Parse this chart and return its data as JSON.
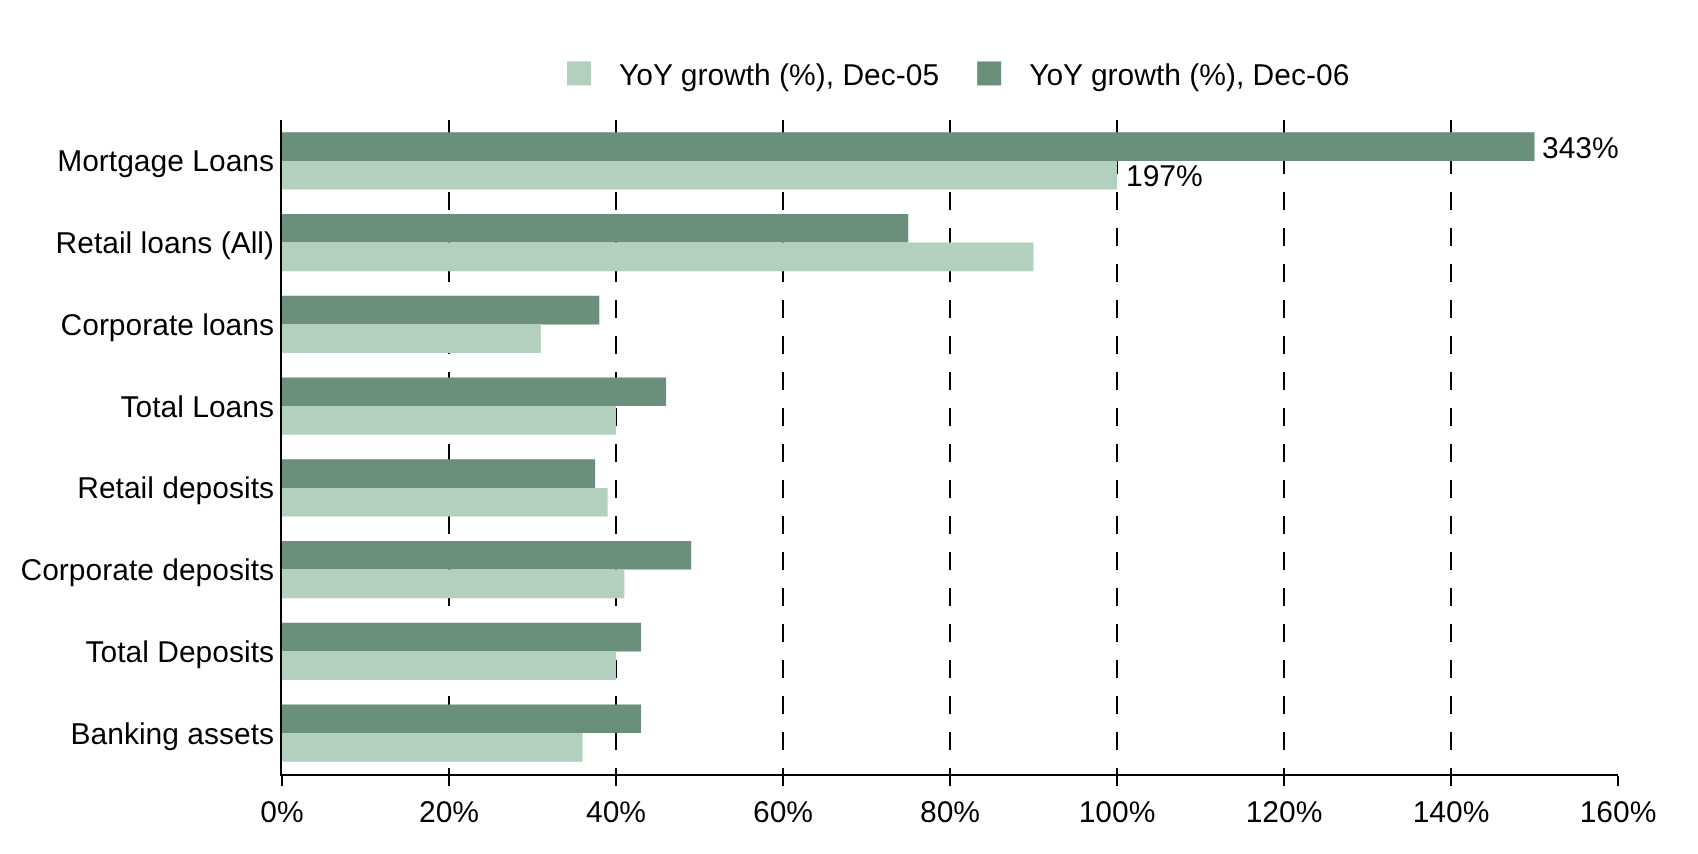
{
  "chart_data": {
    "type": "bar",
    "orientation": "horizontal",
    "categories": [
      "Mortgage Loans",
      "Retail loans (All)",
      "Corporate loans",
      "Total Loans",
      "Retail deposits",
      "Corporate deposits",
      "Total Deposits",
      "Banking assets"
    ],
    "series": [
      {
        "name": "YoY growth (%), Dec-05",
        "color": "#b3cfbd",
        "values": [
          100,
          90,
          31,
          40,
          39,
          41,
          40,
          36
        ]
      },
      {
        "name": "YoY growth (%), Dec-06",
        "color": "#6a8f7b",
        "values": [
          150,
          75,
          38,
          46,
          37.5,
          49,
          43,
          43
        ]
      }
    ],
    "xlim": [
      0,
      160
    ],
    "xticks": [
      {
        "value": 0,
        "label": "0%"
      },
      {
        "value": 20,
        "label": "20%"
      },
      {
        "value": 40,
        "label": "40%"
      },
      {
        "value": 60,
        "label": "60%"
      },
      {
        "value": 80,
        "label": "80%"
      },
      {
        "value": 100,
        "label": "100%"
      },
      {
        "value": 120,
        "label": "120%"
      },
      {
        "value": 140,
        "label": "140%"
      },
      {
        "value": 160,
        "label": "160%"
      }
    ],
    "annotations": [
      {
        "text": "343%",
        "x": 150,
        "y": "Mortgage Loans"
      },
      {
        "text": "197%",
        "x": 100,
        "y": "Mortgage Loans"
      }
    ],
    "grid": "x",
    "line_style": "dashed",
    "legend": "top"
  }
}
